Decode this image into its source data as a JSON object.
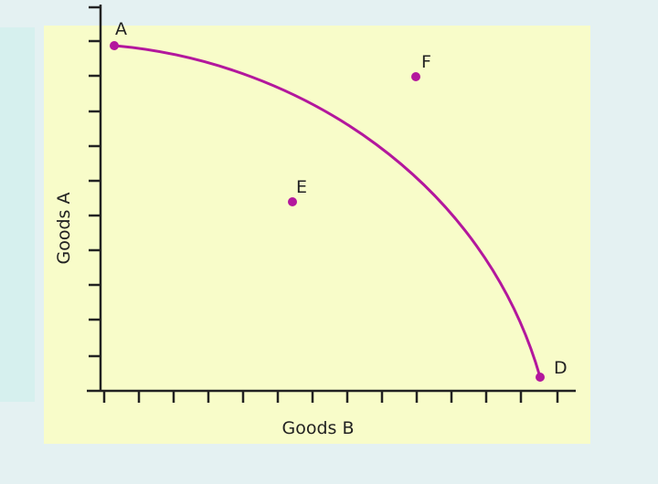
{
  "axes": {
    "x_label": "Goods B",
    "y_label": "Goods A"
  },
  "points": [
    {
      "label": "A"
    },
    {
      "label": "F"
    },
    {
      "label": "E"
    },
    {
      "label": "D"
    }
  ]
}
